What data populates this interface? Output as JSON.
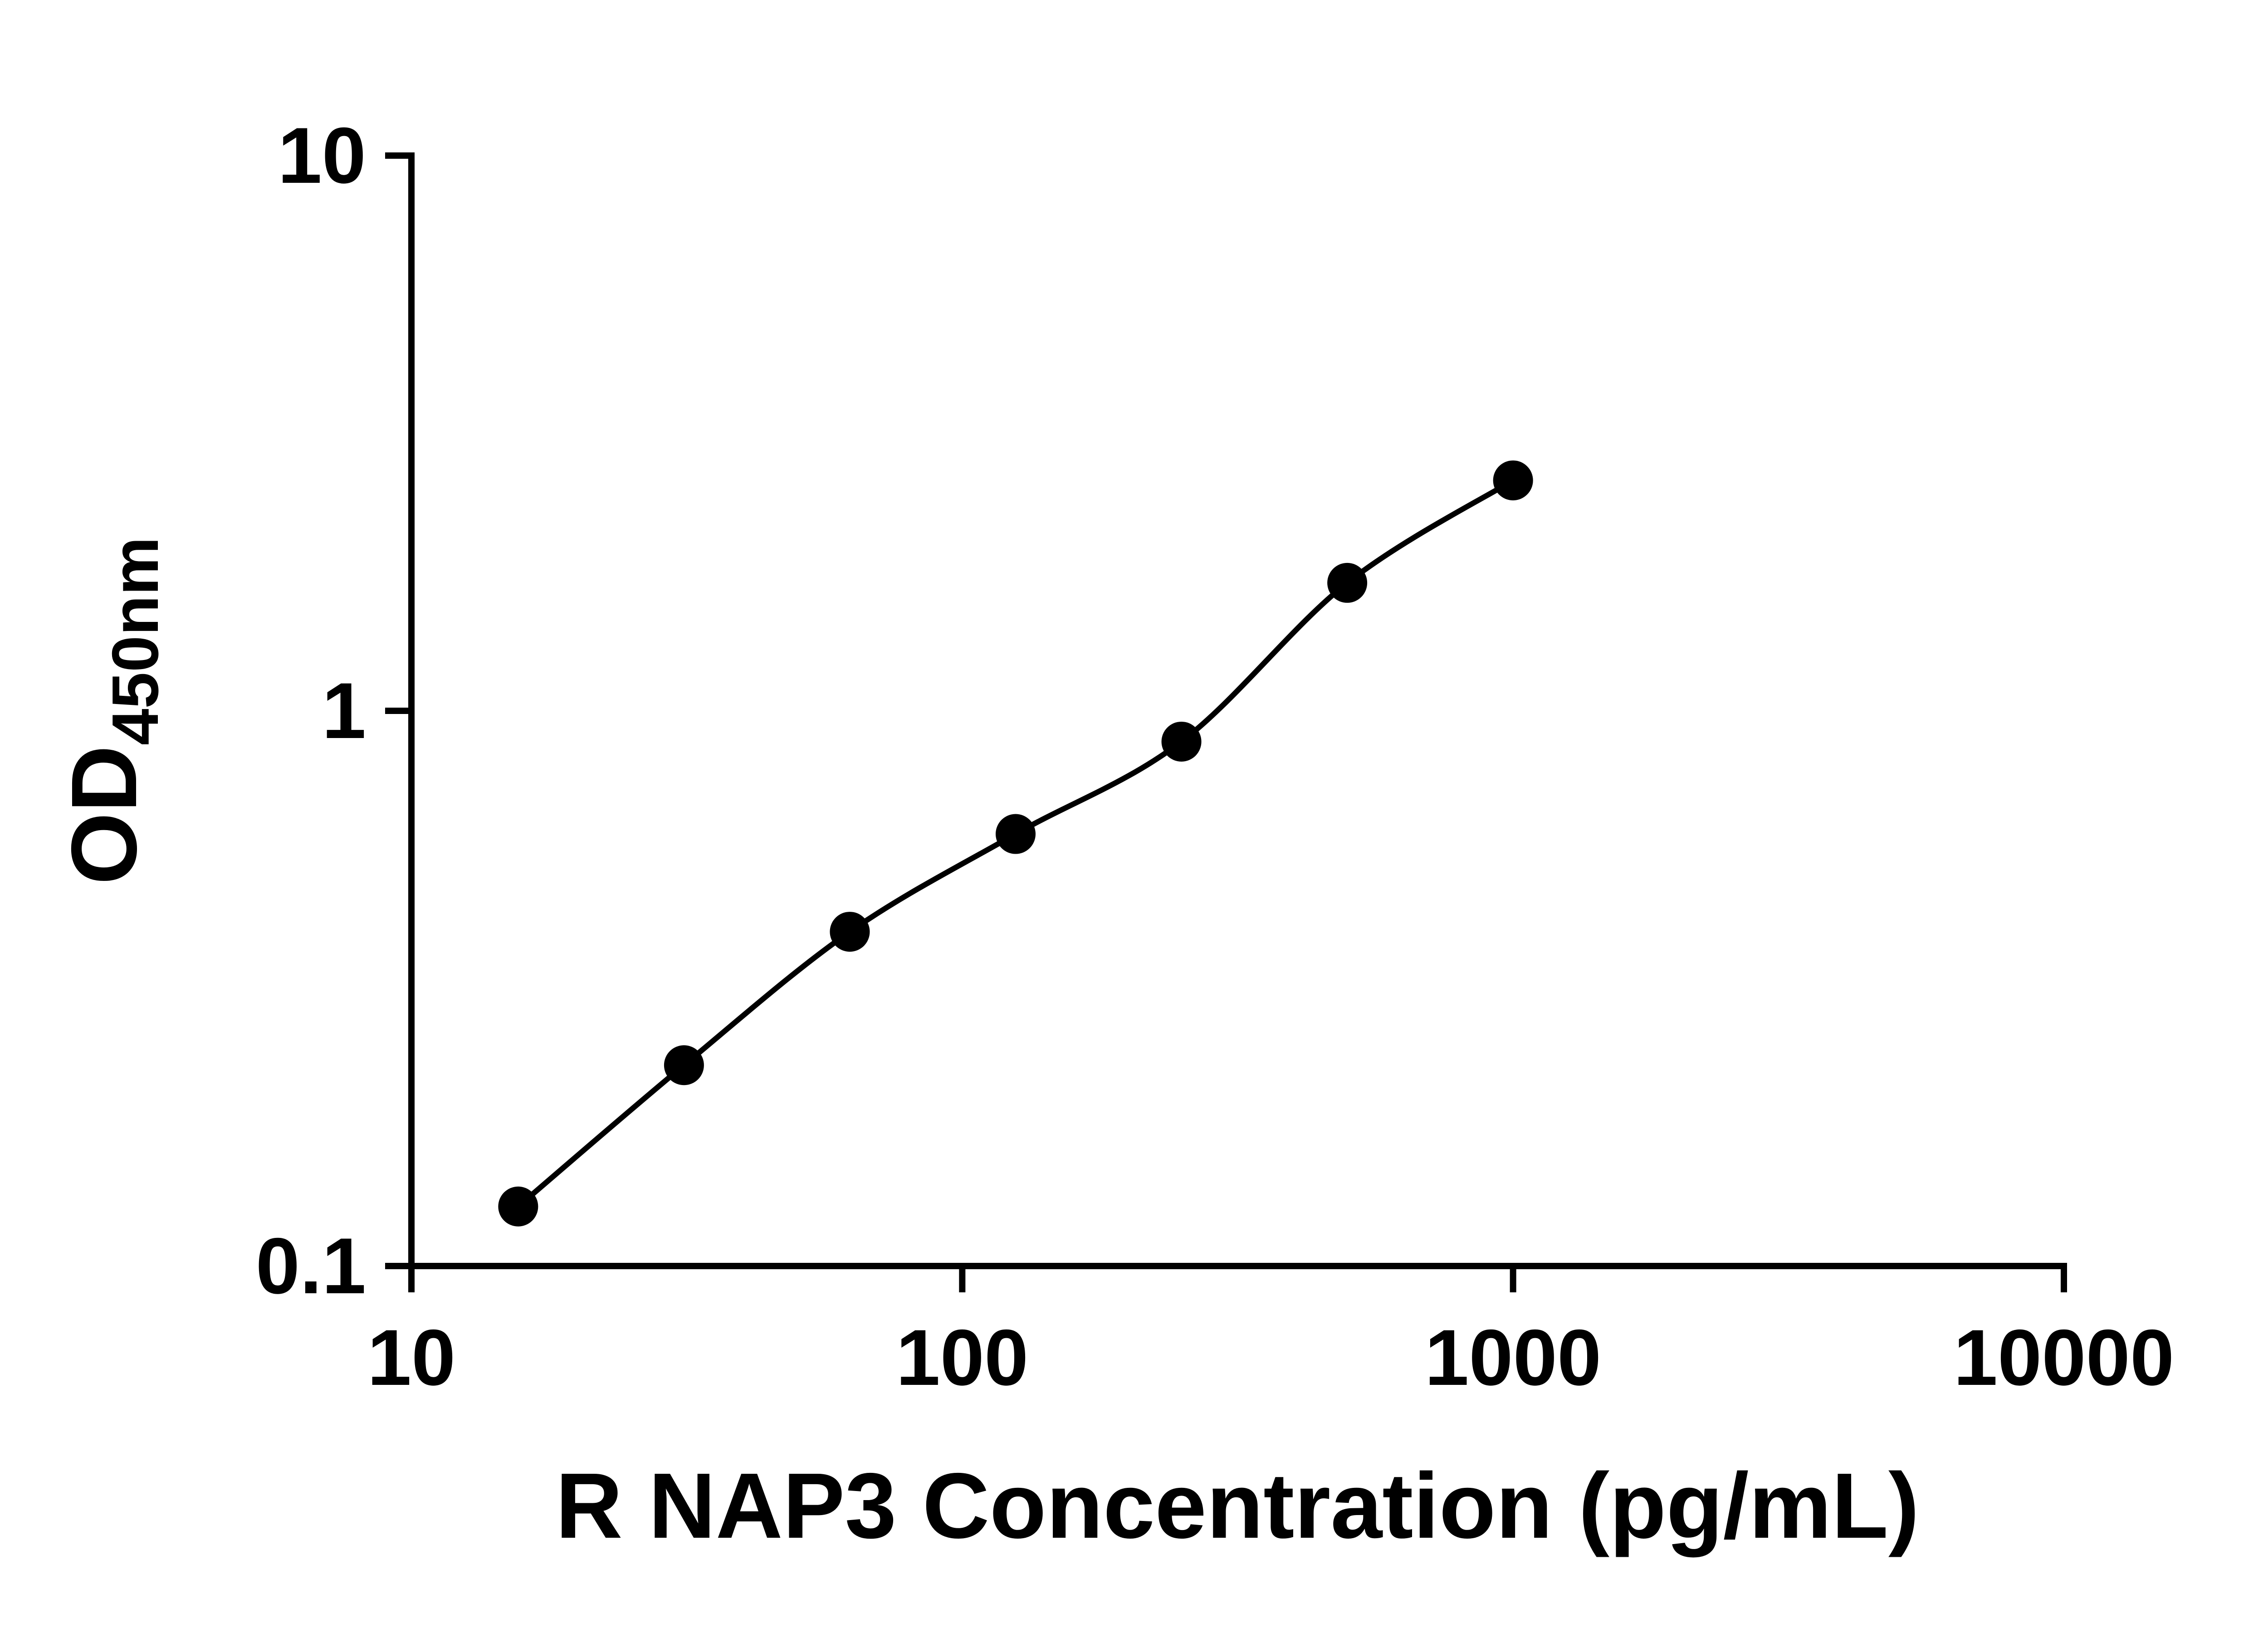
{
  "figure": {
    "background": "#ffffff",
    "axis_color": "#000000",
    "marker_color": "#000000",
    "line_color": "#000000"
  },
  "chart_data": {
    "type": "scatter",
    "title": "",
    "xlabel": "R NAP3 Concentration (pg/mL)",
    "ylabel": "OD450nm",
    "ylabel_main": "OD",
    "ylabel_sub": "450nm",
    "x_scale": "log10",
    "y_scale": "log10",
    "xlim": [
      10,
      10000
    ],
    "ylim": [
      0.1,
      10
    ],
    "grid": false,
    "legend": false,
    "x_ticks": [
      {
        "value": 10,
        "label": "10"
      },
      {
        "value": 100,
        "label": "100"
      },
      {
        "value": 1000,
        "label": "1000"
      },
      {
        "value": 10000,
        "label": "10000"
      }
    ],
    "y_ticks": [
      {
        "value": 0.1,
        "label": "0.1"
      },
      {
        "value": 1,
        "label": "1"
      },
      {
        "value": 10,
        "label": "10"
      }
    ],
    "series": [
      {
        "marker": "filled-circle",
        "color": "#000000",
        "line": true,
        "points": [
          {
            "x": 15.625,
            "y": 0.128
          },
          {
            "x": 31.25,
            "y": 0.23
          },
          {
            "x": 62.5,
            "y": 0.4
          },
          {
            "x": 125,
            "y": 0.6
          },
          {
            "x": 250,
            "y": 0.88
          },
          {
            "x": 500,
            "y": 1.7
          },
          {
            "x": 1000,
            "y": 2.6
          }
        ]
      }
    ]
  }
}
